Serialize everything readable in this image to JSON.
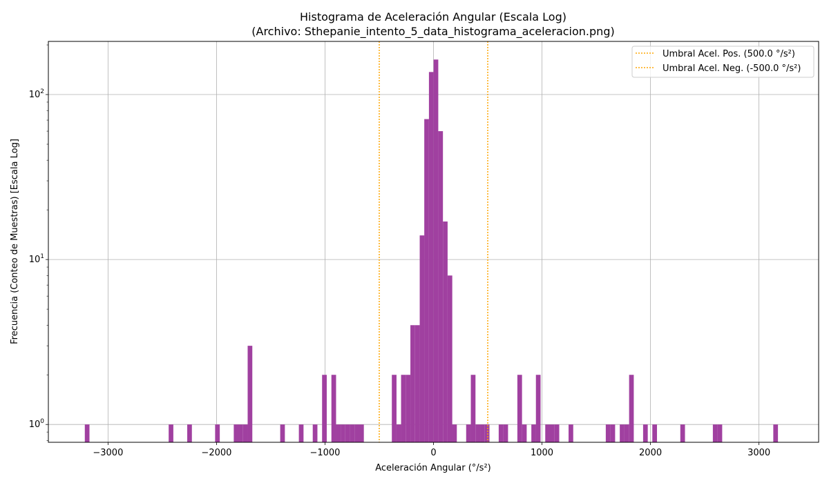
{
  "chart_data": {
    "type": "bar",
    "title_line1": "Histograma de Aceleración Angular (Escala Log)",
    "title_line2": "(Archivo: Sthepanie_intento_5_data_histograma_aceleracion.png)",
    "xlabel": "Aceleración Angular (°/s²)",
    "ylabel": "Frecuencia (Conteo de Muestras) [Escala Log]",
    "xlim": [
      -3550,
      3550
    ],
    "ylim": [
      0.78,
      210
    ],
    "yscale": "log",
    "grid": true,
    "legend_position": "top-right",
    "xticks": [
      -3000,
      -2000,
      -1000,
      0,
      1000,
      2000,
      3000
    ],
    "xtick_labels": [
      "−3000",
      "−2000",
      "−1000",
      "0",
      "1000",
      "2000",
      "3000"
    ],
    "yticks": [
      {
        "base": "10",
        "exp": "0",
        "value": 1
      },
      {
        "base": "10",
        "exp": "1",
        "value": 10
      },
      {
        "base": "10",
        "exp": "2",
        "value": 100
      }
    ],
    "bar_color": "#a040a0",
    "bin_width": 43,
    "bars": [
      {
        "x": -3214,
        "count": 1
      },
      {
        "x": -2441,
        "count": 1
      },
      {
        "x": -2270,
        "count": 1
      },
      {
        "x": -2013,
        "count": 1
      },
      {
        "x": -1841,
        "count": 1
      },
      {
        "x": -1799,
        "count": 1
      },
      {
        "x": -1756,
        "count": 1
      },
      {
        "x": -1713,
        "count": 3
      },
      {
        "x": -1413,
        "count": 1
      },
      {
        "x": -1241,
        "count": 1
      },
      {
        "x": -1113,
        "count": 1
      },
      {
        "x": -1027,
        "count": 2
      },
      {
        "x": -941,
        "count": 2
      },
      {
        "x": -899,
        "count": 1
      },
      {
        "x": -856,
        "count": 1
      },
      {
        "x": -813,
        "count": 1
      },
      {
        "x": -770,
        "count": 1
      },
      {
        "x": -727,
        "count": 1
      },
      {
        "x": -685,
        "count": 1
      },
      {
        "x": -384,
        "count": 2
      },
      {
        "x": -341,
        "count": 1
      },
      {
        "x": -299,
        "count": 2
      },
      {
        "x": -256,
        "count": 2
      },
      {
        "x": -213,
        "count": 4
      },
      {
        "x": -170,
        "count": 4
      },
      {
        "x": -127,
        "count": 14
      },
      {
        "x": -85,
        "count": 71
      },
      {
        "x": -42,
        "count": 137
      },
      {
        "x": 1,
        "count": 163
      },
      {
        "x": 44,
        "count": 60
      },
      {
        "x": 87,
        "count": 17
      },
      {
        "x": 130,
        "count": 8
      },
      {
        "x": 172,
        "count": 1
      },
      {
        "x": 301,
        "count": 1
      },
      {
        "x": 344,
        "count": 2
      },
      {
        "x": 387,
        "count": 1
      },
      {
        "x": 430,
        "count": 1
      },
      {
        "x": 473,
        "count": 1
      },
      {
        "x": 601,
        "count": 1
      },
      {
        "x": 644,
        "count": 1
      },
      {
        "x": 773,
        "count": 2
      },
      {
        "x": 816,
        "count": 1
      },
      {
        "x": 902,
        "count": 1
      },
      {
        "x": 944,
        "count": 2
      },
      {
        "x": 1030,
        "count": 1
      },
      {
        "x": 1073,
        "count": 1
      },
      {
        "x": 1116,
        "count": 1
      },
      {
        "x": 1245,
        "count": 1
      },
      {
        "x": 1588,
        "count": 1
      },
      {
        "x": 1631,
        "count": 1
      },
      {
        "x": 1717,
        "count": 1
      },
      {
        "x": 1760,
        "count": 1
      },
      {
        "x": 1803,
        "count": 2
      },
      {
        "x": 1932,
        "count": 1
      },
      {
        "x": 2017,
        "count": 1
      },
      {
        "x": 2275,
        "count": 1
      },
      {
        "x": 2575,
        "count": 1
      },
      {
        "x": 2618,
        "count": 1
      },
      {
        "x": 3132,
        "count": 1
      }
    ],
    "thresholds": [
      {
        "value": 500,
        "label": "Umbral Acel. Pos. (500.0 °/s²)",
        "color": "#ffa500"
      },
      {
        "value": -500,
        "label": "Umbral Acel. Neg. (-500.0 °/s²)",
        "color": "#ffa500"
      }
    ]
  }
}
